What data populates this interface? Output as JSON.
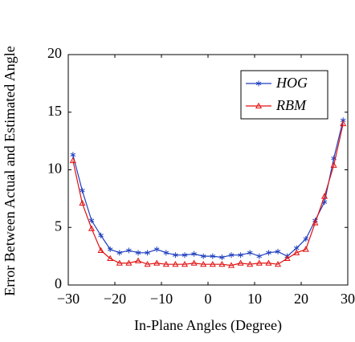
{
  "chart_data": {
    "type": "line",
    "x_label": "In-Plane Angles (Degree)",
    "y_label": "Error Between Actual and Estimated Angle",
    "x": [
      -29,
      -27,
      -25,
      -23,
      -21,
      -19,
      -17,
      -15,
      -13,
      -11,
      -9,
      -7,
      -5,
      -3,
      -1,
      1,
      3,
      5,
      7,
      9,
      11,
      13,
      15,
      17,
      19,
      21,
      23,
      25,
      27,
      29
    ],
    "series": [
      {
        "name": "HOG",
        "color": "#1f3fbf",
        "marker": "star",
        "values": [
          11.3,
          8.2,
          5.6,
          4.3,
          3.1,
          2.8,
          3.0,
          2.8,
          2.8,
          3.1,
          2.8,
          2.6,
          2.6,
          2.7,
          2.5,
          2.5,
          2.4,
          2.6,
          2.6,
          2.8,
          2.5,
          2.8,
          2.9,
          2.5,
          3.2,
          4.0,
          5.6,
          7.2,
          11.0,
          14.3
        ]
      },
      {
        "name": "RBM",
        "color": "#e01010",
        "marker": "triangle",
        "values": [
          10.8,
          7.1,
          4.9,
          3.0,
          2.3,
          1.9,
          1.9,
          2.1,
          1.8,
          1.9,
          1.8,
          1.8,
          1.8,
          1.9,
          1.8,
          1.8,
          1.8,
          1.7,
          1.9,
          1.8,
          1.9,
          1.9,
          1.8,
          2.3,
          2.8,
          3.1,
          5.4,
          7.7,
          10.4,
          14.0
        ]
      }
    ],
    "xlim": [
      -30,
      30
    ],
    "xticks": [
      {
        "value": -30,
        "label": "−30"
      },
      {
        "value": -20,
        "label": "−20"
      },
      {
        "value": -10,
        "label": "−10"
      },
      0,
      10,
      20,
      30
    ],
    "ylim": [
      0,
      20
    ],
    "yticks": [
      0,
      5,
      10,
      15,
      20
    ],
    "legend": "upper right"
  }
}
